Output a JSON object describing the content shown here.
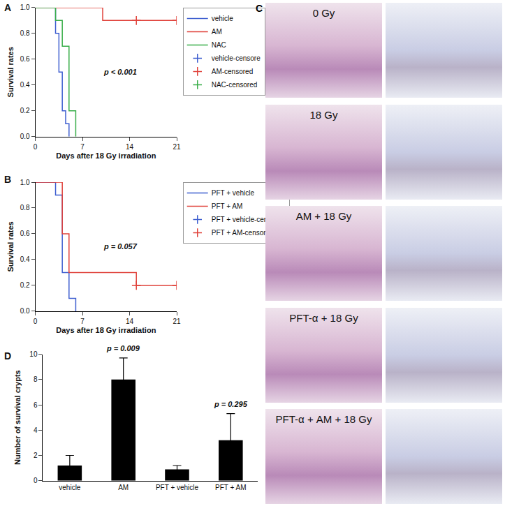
{
  "chart_data": [
    {
      "panel": "A",
      "type": "line",
      "xlabel": "Days after 18 Gy irradiation",
      "ylabel": "Survival rates",
      "xlim": [
        0,
        21
      ],
      "xticks": [
        0,
        7,
        14,
        21
      ],
      "ylim": [
        0,
        1
      ],
      "yticks": [
        {
          "value": 0,
          "label": "0.0"
        },
        {
          "value": 0.2,
          "label": "0.2"
        },
        {
          "value": 0.4,
          "label": "0.4"
        },
        {
          "value": 0.6,
          "label": "0.6"
        },
        {
          "value": 0.8,
          "label": "0.8"
        },
        {
          "value": 1,
          "label": "1.0"
        }
      ],
      "legend": "right",
      "annotation": "p < 0.001",
      "series": [
        {
          "name": "vehicle",
          "color": "#3f5fd0",
          "line_style": "step",
          "x": [
            0,
            3,
            3.5,
            4,
            4.5,
            5
          ],
          "values": [
            1,
            0.8,
            0.5,
            0.2,
            0.1,
            0
          ]
        },
        {
          "name": "AM",
          "color": "#e0413a",
          "line_style": "step",
          "x": [
            0,
            10,
            21
          ],
          "values": [
            1,
            0.9,
            0.9
          ]
        },
        {
          "name": "NAC",
          "color": "#3aae4a",
          "line_style": "step",
          "x": [
            0,
            3,
            4,
            5,
            6
          ],
          "values": [
            1,
            0.9,
            0.7,
            0.2,
            0
          ]
        },
        {
          "name": "vehicle-censore",
          "color": "#3f5fd0",
          "marker": "cross",
          "x": [],
          "values": []
        },
        {
          "name": "AM-censored",
          "color": "#e0413a",
          "marker": "cross",
          "x": [
            15,
            21
          ],
          "values": [
            0.9,
            0.9
          ]
        },
        {
          "name": "NAC-censored",
          "color": "#3aae4a",
          "marker": "cross",
          "x": [],
          "values": []
        }
      ]
    },
    {
      "panel": "B",
      "type": "line",
      "xlabel": "Days after 18 Gy irradiation",
      "ylabel": "Survival rates",
      "xlim": [
        0,
        21
      ],
      "xticks": [
        0,
        7,
        14,
        21
      ],
      "ylim": [
        0,
        1
      ],
      "yticks": [
        {
          "value": 0,
          "label": "0.0"
        },
        {
          "value": 0.2,
          "label": "0.2"
        },
        {
          "value": 0.4,
          "label": "0.4"
        },
        {
          "value": 0.6,
          "label": "0.6"
        },
        {
          "value": 0.8,
          "label": "0.8"
        },
        {
          "value": 1,
          "label": "1.0"
        }
      ],
      "legend": "right",
      "annotation": "p = 0.057",
      "series": [
        {
          "name": "PFT + vehicle",
          "color": "#3f5fd0",
          "line_style": "step",
          "x": [
            0,
            3,
            4,
            5,
            6
          ],
          "values": [
            1,
            0.9,
            0.3,
            0.1,
            0
          ]
        },
        {
          "name": "PFT + AM",
          "color": "#e0413a",
          "line_style": "step",
          "x": [
            0,
            4,
            5,
            15,
            21
          ],
          "values": [
            1,
            0.6,
            0.3,
            0.2,
            0.2
          ]
        },
        {
          "name": "PFT + vehicle-censored",
          "color": "#3f5fd0",
          "marker": "cross",
          "x": [],
          "values": []
        },
        {
          "name": "PFT + AM-censored",
          "color": "#e0413a",
          "marker": "cross",
          "x": [
            15,
            21
          ],
          "values": [
            0.2,
            0.2
          ]
        }
      ]
    },
    {
      "panel": "D",
      "type": "bar",
      "ylabel": "Number of survival crypts",
      "categories": [
        "vehicle",
        "AM",
        "PFT + vehicle",
        "PFT + AM"
      ],
      "values": [
        1.2,
        8.0,
        0.9,
        3.2
      ],
      "error": [
        0.8,
        1.7,
        0.3,
        2.1
      ],
      "color": "#000000",
      "ylim": [
        0,
        10
      ],
      "yticks": [
        0,
        2,
        4,
        6,
        8,
        10
      ],
      "annotations": [
        {
          "category": "AM",
          "text": "p = 0.009"
        },
        {
          "category": "PFT + AM",
          "text": "p = 0.295"
        }
      ]
    }
  ],
  "image_panel": {
    "panel": "C",
    "rows": [
      "0 Gy",
      "18 Gy",
      "AM + 18 Gy",
      "PFT-α + 18 Gy",
      "PFT-α + AM + 18 Gy"
    ]
  }
}
